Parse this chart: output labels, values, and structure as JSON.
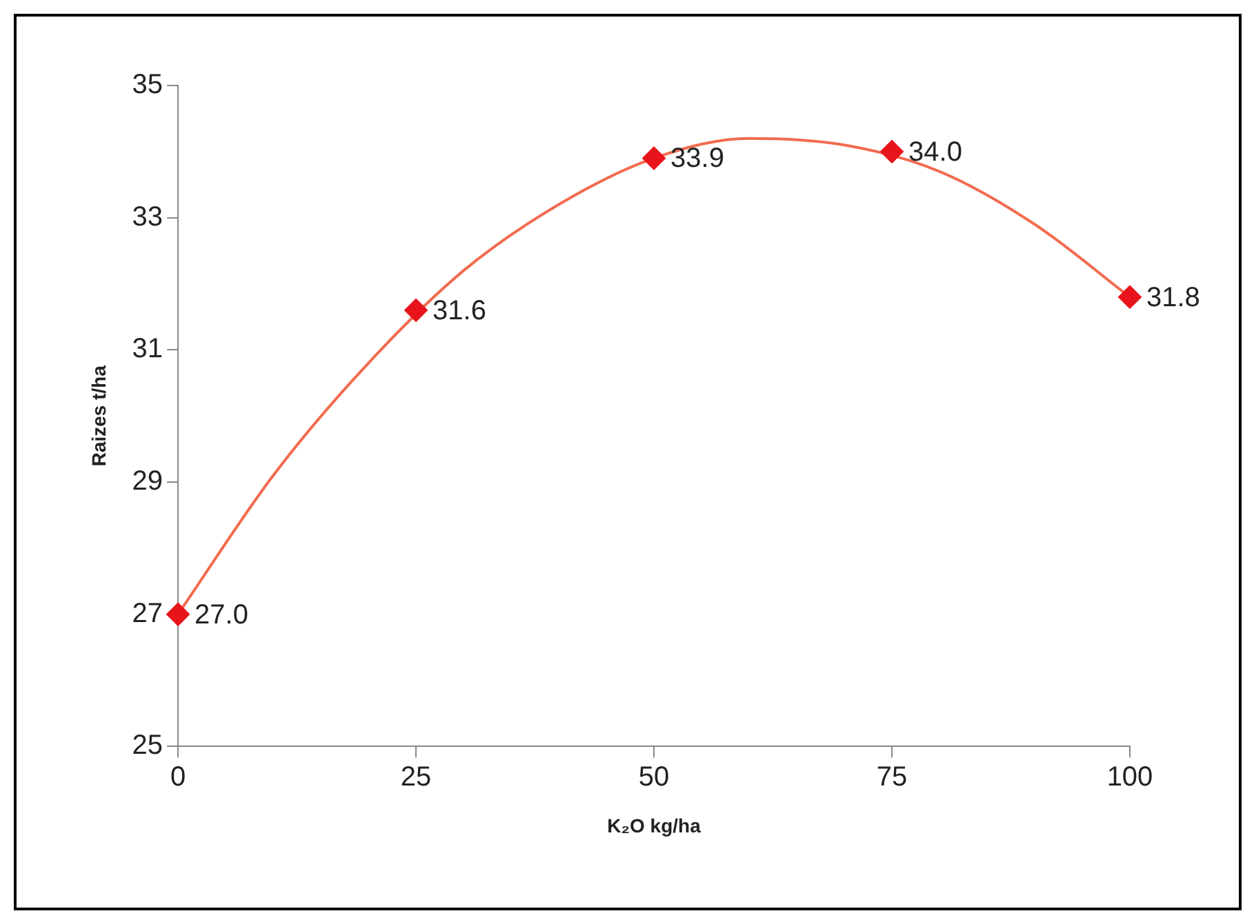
{
  "chart_data": {
    "type": "scatter",
    "xlabel": "K₂O kg/ha",
    "ylabel": "Raizes t/ha",
    "xlim": [
      0,
      100
    ],
    "xticks": [
      0,
      25,
      50,
      75,
      100
    ],
    "ylim": [
      25,
      35
    ],
    "yticks": [
      25,
      27,
      29,
      31,
      33,
      35
    ],
    "grid": false,
    "series": [
      {
        "type": "line",
        "color": "#f26b4f",
        "x": [
          0,
          10,
          20,
          30,
          40,
          50,
          60,
          70,
          80,
          90,
          100
        ],
        "values": [
          27.0,
          29.1,
          30.8,
          32.2,
          33.2,
          33.9,
          34.2,
          34.1,
          33.7,
          32.9,
          31.8
        ],
        "marker": "none",
        "line_style": "solid"
      },
      {
        "color": "#e8141c",
        "x": [
          0,
          25,
          50,
          75,
          100
        ],
        "values": [
          27.0,
          31.6,
          33.9,
          34.0,
          31.8
        ],
        "marker": "diamond",
        "value_labels": [
          "27.0",
          "31.6",
          "33.9",
          "34.0",
          "31.8"
        ]
      }
    ]
  }
}
